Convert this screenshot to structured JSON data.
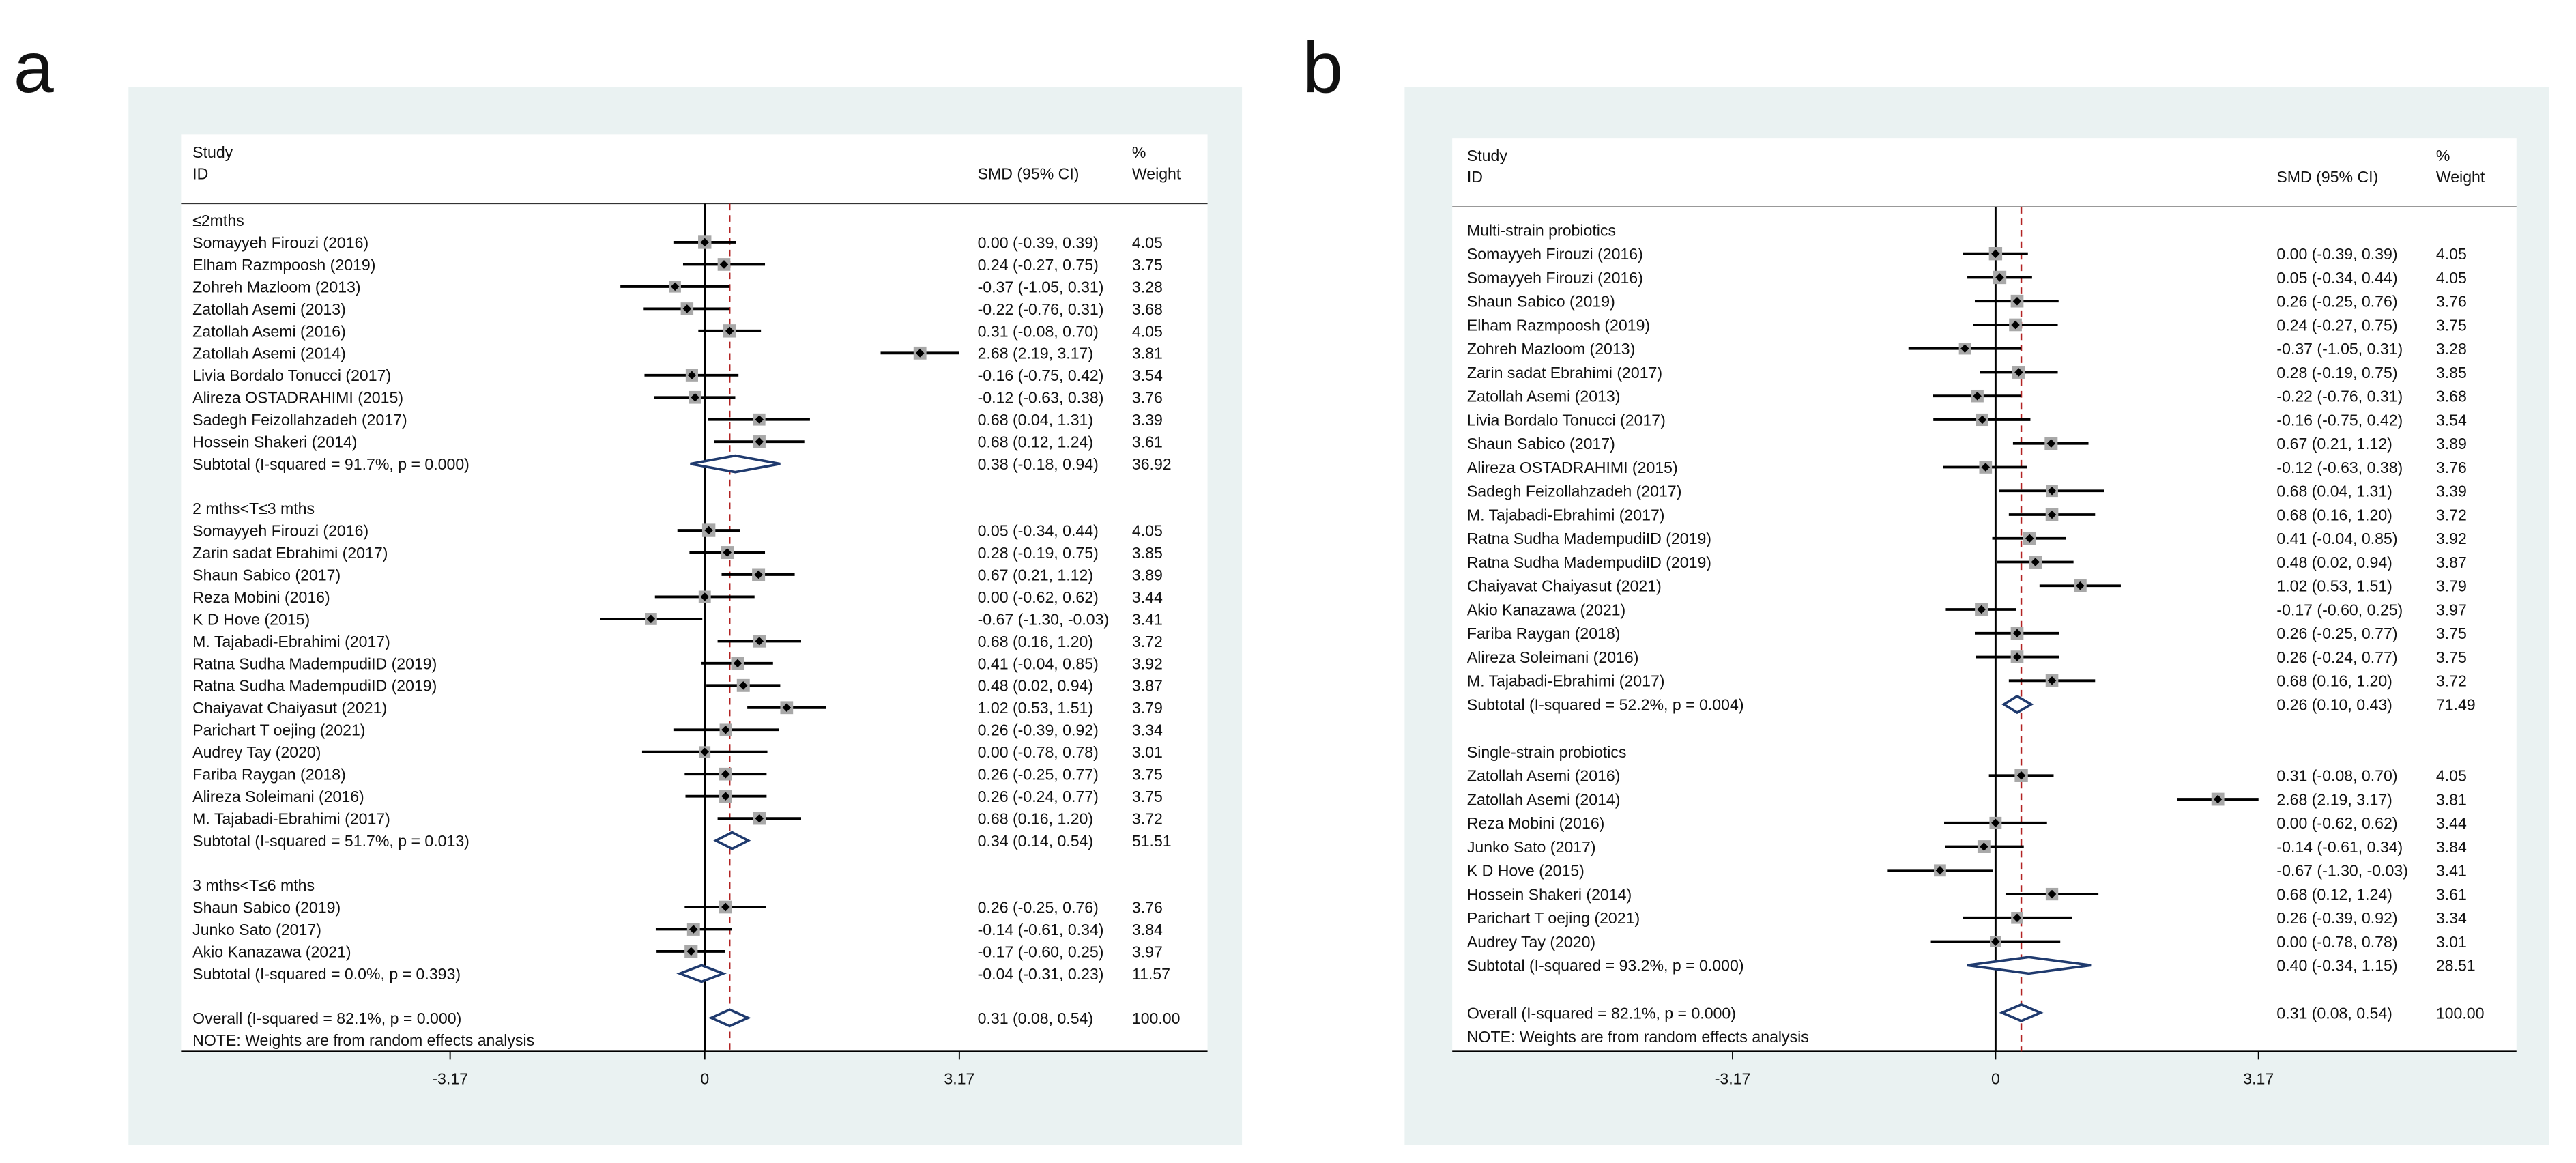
{
  "chart_data": [
    {
      "type": "forest",
      "panel_label": "a",
      "header": {
        "study": "Study",
        "id": "ID",
        "effect": "SMD (95% CI)",
        "pct": "%",
        "weight": "Weight"
      },
      "xlim": [
        -6.52,
        6.26
      ],
      "xticks": [
        -3.17,
        0,
        3.17
      ],
      "groups": [
        {
          "name": "≤2mths",
          "studies": [
            {
              "name": "Somayyeh Firouzi (2016)",
              "smd": 0.0,
              "ci": [
                -0.39,
                0.39
              ],
              "label": "0.00 (-0.39, 0.39)",
              "weight": 4.05
            },
            {
              "name": "Elham Razmpoosh (2019)",
              "smd": 0.24,
              "ci": [
                -0.27,
                0.75
              ],
              "label": "0.24 (-0.27, 0.75)",
              "weight": 3.75
            },
            {
              "name": "Zohreh Mazloom (2013)",
              "smd": -0.37,
              "ci": [
                -1.05,
                0.31
              ],
              "label": "-0.37 (-1.05, 0.31)",
              "weight": 3.28
            },
            {
              "name": "Zatollah Asemi  (2013)",
              "smd": -0.22,
              "ci": [
                -0.76,
                0.31
              ],
              "label": "-0.22 (-0.76, 0.31)",
              "weight": 3.68
            },
            {
              "name": "Zatollah Asemi (2016)",
              "smd": 0.31,
              "ci": [
                -0.08,
                0.7
              ],
              "label": "0.31 (-0.08, 0.70)",
              "weight": 4.05
            },
            {
              "name": "Zatollah Asemi (2014)",
              "smd": 2.68,
              "ci": [
                2.19,
                3.17
              ],
              "label": "2.68 (2.19, 3.17)",
              "weight": 3.81
            },
            {
              "name": "Livia Bordalo Tonucci (2017)",
              "smd": -0.16,
              "ci": [
                -0.75,
                0.42
              ],
              "label": "-0.16 (-0.75, 0.42)",
              "weight": 3.54
            },
            {
              "name": "Alireza OSTADRAHIMI  (2015)",
              "smd": -0.12,
              "ci": [
                -0.63,
                0.38
              ],
              "label": "-0.12 (-0.63, 0.38)",
              "weight": 3.76
            },
            {
              "name": "Sadegh Feizollahzadeh (2017)",
              "smd": 0.68,
              "ci": [
                0.04,
                1.31
              ],
              "label": "0.68 (0.04, 1.31)",
              "weight": 3.39
            },
            {
              "name": "Hossein Shakeri (2014)",
              "smd": 0.68,
              "ci": [
                0.12,
                1.24
              ],
              "label": "0.68 (0.12, 1.24)",
              "weight": 3.61
            }
          ],
          "subtotal": {
            "name": "Subtotal  (I-squared = 91.7%, p = 0.000)",
            "smd": 0.38,
            "ci": [
              -0.18,
              0.94
            ],
            "label": "0.38 (-0.18, 0.94)",
            "weight": 36.92
          }
        },
        {
          "name": "2 mths<T≤3 mths",
          "studies": [
            {
              "name": "Somayyeh Firouzi (2016)",
              "smd": 0.05,
              "ci": [
                -0.34,
                0.44
              ],
              "label": "0.05 (-0.34, 0.44)",
              "weight": 4.05
            },
            {
              "name": "Zarin sadat Ebrahimi (2017)",
              "smd": 0.28,
              "ci": [
                -0.19,
                0.75
              ],
              "label": "0.28 (-0.19, 0.75)",
              "weight": 3.85
            },
            {
              "name": "Shaun Sabico (2017)",
              "smd": 0.67,
              "ci": [
                0.21,
                1.12
              ],
              "label": "0.67 (0.21, 1.12)",
              "weight": 3.89
            },
            {
              "name": "Reza Mobini (2016)",
              "smd": 0.0,
              "ci": [
                -0.62,
                0.62
              ],
              "label": "0.00 (-0.62, 0.62)",
              "weight": 3.44
            },
            {
              "name": "K D Hove (2015)",
              "smd": -0.67,
              "ci": [
                -1.3,
                -0.03
              ],
              "label": "-0.67 (-1.30, -0.03)",
              "weight": 3.41
            },
            {
              "name": "M. Tajabadi-Ebrahimi (2017)",
              "smd": 0.68,
              "ci": [
                0.16,
                1.2
              ],
              "label": "0.68 (0.16, 1.20)",
              "weight": 3.72
            },
            {
              "name": "Ratna Sudha MadempudiID (2019)",
              "smd": 0.41,
              "ci": [
                -0.04,
                0.85
              ],
              "label": "0.41 (-0.04, 0.85)",
              "weight": 3.92
            },
            {
              "name": "Ratna Sudha MadempudiID (2019)",
              "smd": 0.48,
              "ci": [
                0.02,
                0.94
              ],
              "label": "0.48 (0.02, 0.94)",
              "weight": 3.87
            },
            {
              "name": "Chaiyavat Chaiyasut (2021)",
              "smd": 1.02,
              "ci": [
                0.53,
                1.51
              ],
              "label": "1.02 (0.53, 1.51)",
              "weight": 3.79
            },
            {
              "name": "Parichart T oejing (2021)",
              "smd": 0.26,
              "ci": [
                -0.39,
                0.92
              ],
              "label": "0.26 (-0.39, 0.92)",
              "weight": 3.34
            },
            {
              "name": "Audrey Tay (2020)",
              "smd": 0.0,
              "ci": [
                -0.78,
                0.78
              ],
              "label": "0.00 (-0.78, 0.78)",
              "weight": 3.01
            },
            {
              "name": "Fariba Raygan (2018)",
              "smd": 0.26,
              "ci": [
                -0.25,
                0.77
              ],
              "label": "0.26 (-0.25, 0.77)",
              "weight": 3.75
            },
            {
              "name": "Alireza Soleimani (2016)",
              "smd": 0.26,
              "ci": [
                -0.24,
                0.77
              ],
              "label": "0.26 (-0.24, 0.77)",
              "weight": 3.75
            },
            {
              "name": "M. Tajabadi-Ebrahimi (2017)",
              "smd": 0.68,
              "ci": [
                0.16,
                1.2
              ],
              "label": "0.68 (0.16, 1.20)",
              "weight": 3.72
            }
          ],
          "subtotal": {
            "name": "Subtotal  (I-squared = 51.7%, p = 0.013)",
            "smd": 0.34,
            "ci": [
              0.14,
              0.54
            ],
            "label": "0.34 (0.14, 0.54)",
            "weight": 51.51
          }
        },
        {
          "name": "3 mths<T≤6 mths",
          "studies": [
            {
              "name": "Shaun Sabico (2019)",
              "smd": 0.26,
              "ci": [
                -0.25,
                0.76
              ],
              "label": "0.26 (-0.25, 0.76)",
              "weight": 3.76
            },
            {
              "name": "Junko Sato (2017)",
              "smd": -0.14,
              "ci": [
                -0.61,
                0.34
              ],
              "label": "-0.14 (-0.61, 0.34)",
              "weight": 3.84
            },
            {
              "name": "Akio Kanazawa (2021)",
              "smd": -0.17,
              "ci": [
                -0.6,
                0.25
              ],
              "label": "-0.17 (-0.60, 0.25)",
              "weight": 3.97
            }
          ],
          "subtotal": {
            "name": "Subtotal  (I-squared = 0.0%, p = 0.393)",
            "smd": -0.04,
            "ci": [
              -0.31,
              0.23
            ],
            "label": "-0.04 (-0.31, 0.23)",
            "weight": 11.57
          }
        }
      ],
      "overall": {
        "name": "Overall  (I-squared = 82.1%, p = 0.000)",
        "smd": 0.31,
        "ci": [
          0.08,
          0.54
        ],
        "label": "0.31 (0.08, 0.54)",
        "weight": 100,
        "weight_label": "100.00"
      },
      "note": "NOTE: Weights are from random effects analysis"
    },
    {
      "type": "forest",
      "panel_label": "b",
      "header": {
        "study": "Study",
        "id": "ID",
        "effect": "SMD (95% CI)",
        "pct": "%",
        "weight": "Weight"
      },
      "xlim": [
        -6.55,
        6.28
      ],
      "xticks": [
        -3.17,
        0,
        3.17
      ],
      "groups": [
        {
          "name": "Multi-strain probiotics",
          "studies": [
            {
              "name": "Somayyeh Firouzi (2016)",
              "smd": 0.0,
              "ci": [
                -0.39,
                0.39
              ],
              "label": "0.00 (-0.39, 0.39)",
              "weight": 4.05
            },
            {
              "name": "Somayyeh Firouzi (2016)",
              "smd": 0.05,
              "ci": [
                -0.34,
                0.44
              ],
              "label": "0.05 (-0.34, 0.44)",
              "weight": 4.05
            },
            {
              "name": "Shaun Sabico (2019)",
              "smd": 0.26,
              "ci": [
                -0.25,
                0.76
              ],
              "label": "0.26 (-0.25, 0.76)",
              "weight": 3.76
            },
            {
              "name": "Elham Razmpoosh (2019)",
              "smd": 0.24,
              "ci": [
                -0.27,
                0.75
              ],
              "label": "0.24 (-0.27, 0.75)",
              "weight": 3.75
            },
            {
              "name": "Zohreh Mazloom (2013)",
              "smd": -0.37,
              "ci": [
                -1.05,
                0.31
              ],
              "label": "-0.37 (-1.05, 0.31)",
              "weight": 3.28
            },
            {
              "name": "Zarin sadat Ebrahimi (2017)",
              "smd": 0.28,
              "ci": [
                -0.19,
                0.75
              ],
              "label": "0.28 (-0.19, 0.75)",
              "weight": 3.85
            },
            {
              "name": "Zatollah Asemi  (2013)",
              "smd": -0.22,
              "ci": [
                -0.76,
                0.31
              ],
              "label": "-0.22 (-0.76, 0.31)",
              "weight": 3.68
            },
            {
              "name": "Livia Bordalo Tonucci (2017)",
              "smd": -0.16,
              "ci": [
                -0.75,
                0.42
              ],
              "label": "-0.16 (-0.75, 0.42)",
              "weight": 3.54
            },
            {
              "name": "Shaun Sabico (2017)",
              "smd": 0.67,
              "ci": [
                0.21,
                1.12
              ],
              "label": "0.67 (0.21, 1.12)",
              "weight": 3.89
            },
            {
              "name": "Alireza OSTADRAHIMI  (2015)",
              "smd": -0.12,
              "ci": [
                -0.63,
                0.38
              ],
              "label": "-0.12 (-0.63, 0.38)",
              "weight": 3.76
            },
            {
              "name": "Sadegh Feizollahzadeh (2017)",
              "smd": 0.68,
              "ci": [
                0.04,
                1.31
              ],
              "label": "0.68 (0.04, 1.31)",
              "weight": 3.39
            },
            {
              "name": "M. Tajabadi-Ebrahimi (2017)",
              "smd": 0.68,
              "ci": [
                0.16,
                1.2
              ],
              "label": "0.68 (0.16, 1.20)",
              "weight": 3.72
            },
            {
              "name": "Ratna Sudha MadempudiID (2019)",
              "smd": 0.41,
              "ci": [
                -0.04,
                0.85
              ],
              "label": "0.41 (-0.04, 0.85)",
              "weight": 3.92
            },
            {
              "name": "Ratna Sudha MadempudiID (2019)",
              "smd": 0.48,
              "ci": [
                0.02,
                0.94
              ],
              "label": "0.48 (0.02, 0.94)",
              "weight": 3.87
            },
            {
              "name": "Chaiyavat Chaiyasut (2021)",
              "smd": 1.02,
              "ci": [
                0.53,
                1.51
              ],
              "label": "1.02 (0.53, 1.51)",
              "weight": 3.79
            },
            {
              "name": "Akio Kanazawa (2021)",
              "smd": -0.17,
              "ci": [
                -0.6,
                0.25
              ],
              "label": "-0.17 (-0.60, 0.25)",
              "weight": 3.97
            },
            {
              "name": "Fariba Raygan (2018)",
              "smd": 0.26,
              "ci": [
                -0.25,
                0.77
              ],
              "label": "0.26 (-0.25, 0.77)",
              "weight": 3.75
            },
            {
              "name": "Alireza Soleimani (2016)",
              "smd": 0.26,
              "ci": [
                -0.24,
                0.77
              ],
              "label": "0.26 (-0.24, 0.77)",
              "weight": 3.75
            },
            {
              "name": "M. Tajabadi-Ebrahimi (2017)",
              "smd": 0.68,
              "ci": [
                0.16,
                1.2
              ],
              "label": "0.68 (0.16, 1.20)",
              "weight": 3.72
            }
          ],
          "subtotal": {
            "name": "Subtotal  (I-squared = 52.2%, p = 0.004)",
            "smd": 0.26,
            "ci": [
              0.1,
              0.43
            ],
            "label": "0.26 (0.10, 0.43)",
            "weight": 71.49
          }
        },
        {
          "name": "Single-strain probiotics",
          "studies": [
            {
              "name": "Zatollah Asemi (2016)",
              "smd": 0.31,
              "ci": [
                -0.08,
                0.7
              ],
              "label": "0.31 (-0.08, 0.70)",
              "weight": 4.05
            },
            {
              "name": "Zatollah Asemi (2014)",
              "smd": 2.68,
              "ci": [
                2.19,
                3.17
              ],
              "label": "2.68 (2.19, 3.17)",
              "weight": 3.81
            },
            {
              "name": "Reza Mobini (2016)",
              "smd": 0.0,
              "ci": [
                -0.62,
                0.62
              ],
              "label": "0.00 (-0.62, 0.62)",
              "weight": 3.44
            },
            {
              "name": "Junko Sato (2017)",
              "smd": -0.14,
              "ci": [
                -0.61,
                0.34
              ],
              "label": "-0.14 (-0.61, 0.34)",
              "weight": 3.84
            },
            {
              "name": "K D Hove (2015)",
              "smd": -0.67,
              "ci": [
                -1.3,
                -0.03
              ],
              "label": "-0.67 (-1.30, -0.03)",
              "weight": 3.41
            },
            {
              "name": "Hossein Shakeri (2014)",
              "smd": 0.68,
              "ci": [
                0.12,
                1.24
              ],
              "label": "0.68 (0.12, 1.24)",
              "weight": 3.61
            },
            {
              "name": "Parichart T oejing (2021)",
              "smd": 0.26,
              "ci": [
                -0.39,
                0.92
              ],
              "label": "0.26 (-0.39, 0.92)",
              "weight": 3.34
            },
            {
              "name": "Audrey Tay (2020)",
              "smd": 0.0,
              "ci": [
                -0.78,
                0.78
              ],
              "label": "0.00 (-0.78, 0.78)",
              "weight": 3.01
            }
          ],
          "subtotal": {
            "name": "Subtotal  (I-squared = 93.2%, p = 0.000)",
            "smd": 0.4,
            "ci": [
              -0.34,
              1.15
            ],
            "label": "0.40 (-0.34, 1.15)",
            "weight": 28.51
          }
        }
      ],
      "overall": {
        "name": "Overall  (I-squared = 82.1%, p = 0.000)",
        "smd": 0.31,
        "ci": [
          0.08,
          0.54
        ],
        "label": "0.31 (0.08, 0.54)",
        "weight": 100,
        "weight_label": "100.00"
      },
      "note": "NOTE: Weights are from random effects analysis"
    }
  ]
}
